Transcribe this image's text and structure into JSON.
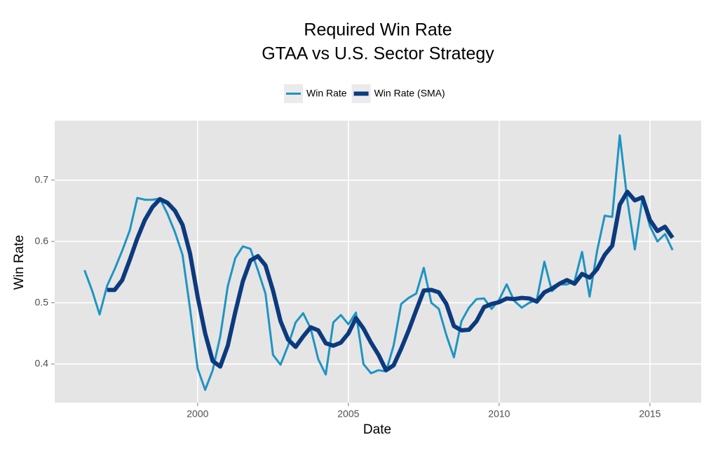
{
  "chart_data": {
    "type": "line",
    "title": [
      "Required Win Rate",
      "GTAA vs U.S. Sector Strategy"
    ],
    "x_label": "Date",
    "y_label": "Win Rate",
    "x": [
      1996.25,
      1996.5,
      1996.75,
      1997,
      1997.25,
      1997.5,
      1997.75,
      1998,
      1998.25,
      1998.5,
      1998.75,
      1999,
      1999.25,
      1999.5,
      1999.75,
      2000,
      2000.25,
      2000.5,
      2000.75,
      2001,
      2001.25,
      2001.5,
      2001.75,
      2002,
      2002.25,
      2002.5,
      2002.75,
      2003,
      2003.25,
      2003.5,
      2003.75,
      2004,
      2004.25,
      2004.5,
      2004.75,
      2005,
      2005.25,
      2005.5,
      2005.75,
      2006,
      2006.25,
      2006.5,
      2006.75,
      2007,
      2007.25,
      2007.5,
      2007.75,
      2008,
      2008.25,
      2008.5,
      2008.75,
      2009,
      2009.25,
      2009.5,
      2009.75,
      2010,
      2010.25,
      2010.5,
      2010.75,
      2011,
      2011.25,
      2011.5,
      2011.75,
      2012,
      2012.25,
      2012.5,
      2012.75,
      2013,
      2013.25,
      2013.5,
      2013.75,
      2014,
      2014.25,
      2014.5,
      2014.75,
      2015,
      2015.25,
      2015.5,
      2015.75
    ],
    "series": [
      {
        "name": "Win Rate",
        "color": "#1f94c2",
        "width": 3,
        "values": [
          0.553,
          0.52,
          0.481,
          0.528,
          0.555,
          0.585,
          0.618,
          0.671,
          0.668,
          0.668,
          0.67,
          0.645,
          0.615,
          0.578,
          0.49,
          0.393,
          0.358,
          0.39,
          0.445,
          0.527,
          0.573,
          0.592,
          0.588,
          0.553,
          0.515,
          0.415,
          0.399,
          0.43,
          0.468,
          0.483,
          0.458,
          0.408,
          0.383,
          0.468,
          0.48,
          0.465,
          0.484,
          0.4,
          0.385,
          0.39,
          0.388,
          0.43,
          0.498,
          0.508,
          0.515,
          0.557,
          0.5,
          0.49,
          0.447,
          0.411,
          0.47,
          0.492,
          0.506,
          0.507,
          0.49,
          0.505,
          0.53,
          0.503,
          0.492,
          0.5,
          0.505,
          0.567,
          0.519,
          0.53,
          0.53,
          0.535,
          0.583,
          0.51,
          0.585,
          0.642,
          0.64,
          0.773,
          0.668,
          0.587,
          0.67,
          0.625,
          0.6,
          0.612,
          0.586
        ]
      },
      {
        "name": "Win Rate (SMA)",
        "color": "#0b3a7e",
        "width": 6,
        "values": [
          null,
          null,
          null,
          0.521,
          0.521,
          0.537,
          0.57,
          0.605,
          0.635,
          0.656,
          0.669,
          0.663,
          0.65,
          0.627,
          0.58,
          0.51,
          0.45,
          0.405,
          0.396,
          0.43,
          0.485,
          0.535,
          0.569,
          0.576,
          0.561,
          0.52,
          0.47,
          0.44,
          0.428,
          0.445,
          0.46,
          0.455,
          0.434,
          0.43,
          0.435,
          0.45,
          0.475,
          0.458,
          0.435,
          0.415,
          0.39,
          0.398,
          0.425,
          0.455,
          0.488,
          0.52,
          0.521,
          0.517,
          0.498,
          0.462,
          0.455,
          0.456,
          0.47,
          0.493,
          0.498,
          0.501,
          0.507,
          0.506,
          0.508,
          0.507,
          0.502,
          0.517,
          0.523,
          0.531,
          0.537,
          0.531,
          0.547,
          0.541,
          0.555,
          0.578,
          0.593,
          0.66,
          0.681,
          0.667,
          0.672,
          0.635,
          0.617,
          0.624,
          0.606
        ]
      }
    ],
    "xlim": [
      1995.26,
      2016.7
    ],
    "xticks": [
      2000,
      2005,
      2010,
      2015
    ],
    "ylim": [
      0.337,
      0.797
    ],
    "yticks": [
      0.4,
      0.5,
      0.6,
      0.7
    ],
    "grid": true,
    "legend": "top"
  }
}
